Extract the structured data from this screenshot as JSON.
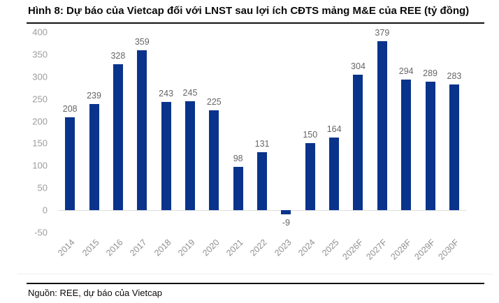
{
  "page": {
    "title": "Hình 8: Dự báo của Vietcap đối với LNST sau lợi ích CĐTS mảng M&E của REE (tỷ đồng)",
    "source": "Nguồn: REE, dự báo của Vietcap"
  },
  "colors": {
    "bar": "#0a338c",
    "y_axis_label": "#9c9c9c",
    "x_axis_label": "#8f8f8f",
    "data_label": "#666666",
    "zero_line": "#dcdcdc",
    "rule": "#111111"
  },
  "chart_data": {
    "type": "bar",
    "title": "Hình 8: Dự báo của Vietcap đối với LNST sau lợi ích CĐTS mảng M&E của REE (tỷ đồng)",
    "unit": "tỷ đồng",
    "categories": [
      "2014",
      "2015",
      "2016",
      "2017",
      "2018",
      "2019",
      "2020",
      "2021",
      "2022",
      "2023",
      "2024",
      "2025",
      "2026F",
      "2027F",
      "2028F",
      "2029F",
      "2030F"
    ],
    "values": [
      208,
      239,
      328,
      359,
      243,
      245,
      225,
      98,
      131,
      -9,
      150,
      164,
      304,
      379,
      294,
      289,
      283
    ],
    "xlabel": "",
    "ylabel": "",
    "ylim": [
      -50,
      400
    ],
    "yticks": [
      400,
      350,
      300,
      250,
      200,
      150,
      100,
      50,
      0,
      -50
    ],
    "grid": false,
    "legend": "none",
    "data_labels": true,
    "x_tick_rotation_deg": 45
  }
}
